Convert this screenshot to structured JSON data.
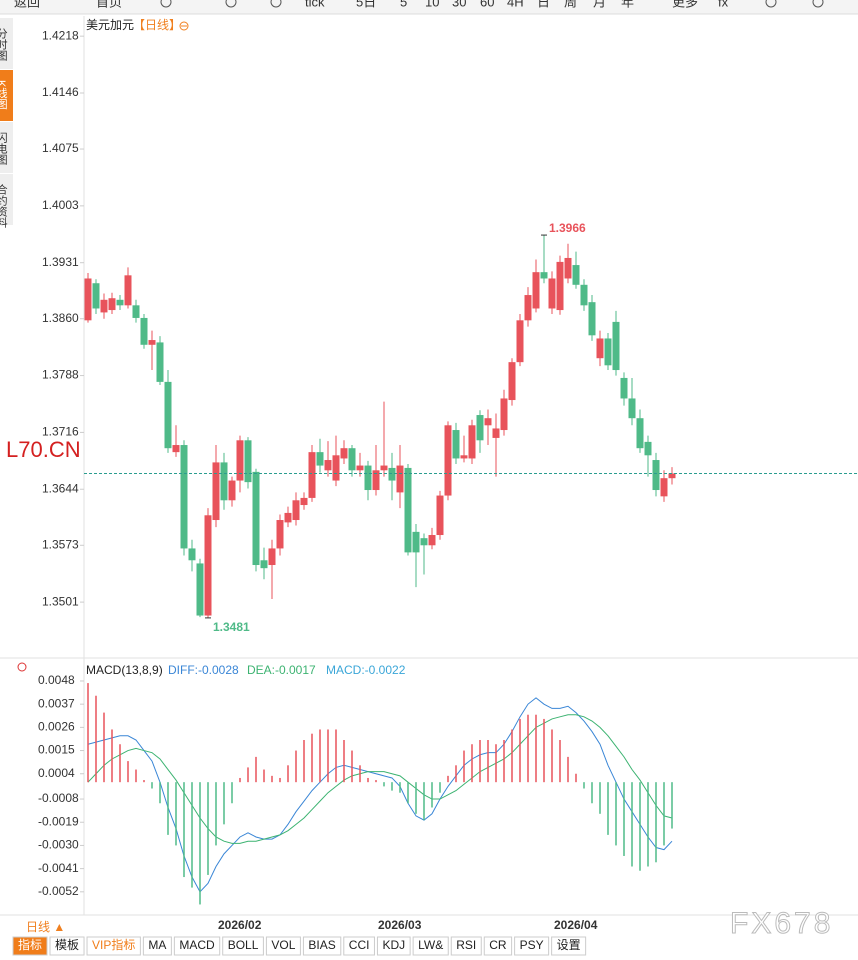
{
  "toolbar": [
    "返回",
    "首页",
    "tick",
    "5日",
    "5",
    "10",
    "30",
    "60",
    "4H",
    "日",
    "周",
    "月",
    "年",
    "更多",
    "fx"
  ],
  "sidebar": [
    "分时图",
    "K线图",
    "闪电图",
    "合约资料"
  ],
  "watermarks": [
    "L70.CN",
    "FX678"
  ],
  "bottom_bar": {
    "period": "日线 ▲",
    "tabs": [
      "指标",
      "模板",
      "VIP指标",
      "MA",
      "MACD",
      "BOLL",
      "VOL",
      "BIAS",
      "CCI",
      "KDJ",
      "LW&",
      "RSI",
      "CR",
      "PSY",
      "设置"
    ]
  },
  "chart_data": [
    {
      "type": "candlestick",
      "title": "美元加元",
      "subtitle": "【日线】",
      "up_color": "#e8535b",
      "down_color": "#4fba88",
      "categories": [
        null,
        null,
        null,
        null,
        null,
        null,
        null,
        null,
        null,
        null,
        null,
        null,
        null,
        null,
        null,
        null,
        "2026/02",
        null,
        null,
        null,
        null,
        null,
        null,
        null,
        null,
        null,
        null,
        null,
        null,
        null,
        null,
        null,
        null,
        null,
        null,
        null,
        "2026/03",
        null,
        null,
        null,
        null,
        null,
        null,
        null,
        null,
        null,
        null,
        null,
        null,
        null,
        null,
        null,
        null,
        null,
        null,
        null,
        null,
        null,
        "2026/04",
        null,
        null,
        null,
        null,
        null,
        null,
        null,
        null,
        null,
        null,
        null,
        null,
        null,
        null,
        null
      ],
      "open": [
        1.3858,
        1.3905,
        1.3868,
        1.3871,
        1.3884,
        1.3877,
        1.3877,
        1.3861,
        1.3827,
        1.383,
        1.378,
        1.3691,
        1.37,
        1.3569,
        1.355,
        1.3484,
        1.3605,
        1.3678,
        1.363,
        1.3655,
        1.3706,
        1.3666,
        1.3554,
        1.3548,
        1.3569,
        1.3602,
        1.3605,
        1.3624,
        1.3633,
        1.3691,
        1.3668,
        1.3655,
        1.3683,
        1.3696,
        1.3668,
        1.3674,
        1.3643,
        1.3668,
        1.3671,
        1.364,
        1.3671,
        1.359,
        1.3582,
        1.3573,
        1.3586,
        1.3636,
        1.3719,
        1.3683,
        1.3683,
        1.3738,
        1.3725,
        1.3709,
        1.3719,
        1.3757,
        1.3805,
        1.3858,
        1.3873,
        1.3919,
        1.3873,
        1.3871,
        1.3911,
        1.3928,
        1.3903,
        1.3881,
        1.381,
        1.3835,
        1.3856,
        1.3785,
        1.3759,
        1.3734,
        1.3704,
        1.3681,
        1.3635,
        1.3658
      ],
      "high": [
        1.3918,
        1.391,
        1.3892,
        1.3893,
        1.389,
        1.3925,
        1.3884,
        1.3866,
        1.3845,
        1.3838,
        1.3795,
        1.3725,
        1.3706,
        1.358,
        1.3556,
        1.362,
        1.37,
        1.369,
        1.366,
        1.3712,
        1.371,
        1.367,
        1.357,
        1.358,
        1.3612,
        1.3622,
        1.364,
        1.364,
        1.37,
        1.3708,
        1.3705,
        1.3712,
        1.3706,
        1.37,
        1.369,
        1.368,
        1.37,
        1.3755,
        1.369,
        1.37,
        1.3676,
        1.36,
        1.3588,
        1.3595,
        1.3642,
        1.373,
        1.3728,
        1.3712,
        1.3732,
        1.3744,
        1.3745,
        1.374,
        1.377,
        1.381,
        1.3866,
        1.39,
        1.3935,
        1.3966,
        1.392,
        1.394,
        1.3955,
        1.3945,
        1.391,
        1.389,
        1.3845,
        1.3842,
        1.387,
        1.3792,
        1.3785,
        1.3745,
        1.3712,
        1.369,
        1.3668,
        1.3672
      ],
      "low": [
        1.3855,
        1.3866,
        1.386,
        1.3866,
        1.3871,
        1.3873,
        1.3855,
        1.3822,
        1.3795,
        1.3776,
        1.369,
        1.3685,
        1.356,
        1.354,
        1.3482,
        1.3481,
        1.3596,
        1.3618,
        1.3622,
        1.364,
        1.3645,
        1.354,
        1.353,
        1.3505,
        1.356,
        1.3596,
        1.3598,
        1.3618,
        1.3628,
        1.3665,
        1.366,
        1.3648,
        1.3676,
        1.366,
        1.366,
        1.363,
        1.3636,
        1.366,
        1.363,
        1.362,
        1.356,
        1.352,
        1.3536,
        1.3568,
        1.358,
        1.363,
        1.3676,
        1.3678,
        1.3676,
        1.369,
        1.37,
        1.366,
        1.3712,
        1.375,
        1.38,
        1.385,
        1.3868,
        1.3905,
        1.3866,
        1.3865,
        1.3905,
        1.3898,
        1.387,
        1.3832,
        1.38,
        1.3795,
        1.3788,
        1.375,
        1.3725,
        1.369,
        1.366,
        1.3635,
        1.3628,
        1.365
      ],
      "close": [
        1.3911,
        1.3873,
        1.3884,
        1.3886,
        1.3877,
        1.3915,
        1.3861,
        1.3827,
        1.3833,
        1.378,
        1.3696,
        1.37,
        1.3569,
        1.3554,
        1.3484,
        1.3611,
        1.3678,
        1.363,
        1.3655,
        1.3706,
        1.3653,
        1.3548,
        1.3544,
        1.3569,
        1.3605,
        1.3614,
        1.363,
        1.3633,
        1.3691,
        1.3674,
        1.3681,
        1.3687,
        1.3696,
        1.3668,
        1.3674,
        1.3643,
        1.3668,
        1.3674,
        1.3655,
        1.3674,
        1.3564,
        1.3564,
        1.3573,
        1.3586,
        1.3636,
        1.3725,
        1.3683,
        1.3687,
        1.3725,
        1.3706,
        1.3734,
        1.3721,
        1.3759,
        1.3805,
        1.3858,
        1.389,
        1.3919,
        1.3911,
        1.3911,
        1.3932,
        1.3937,
        1.3903,
        1.3877,
        1.3839,
        1.3835,
        1.3801,
        1.3795,
        1.3759,
        1.3734,
        1.3696,
        1.3687,
        1.3643,
        1.3658,
        1.3664
      ],
      "ylim": [
        1.3434,
        1.4241
      ],
      "yticks": [
        1.4218,
        1.4146,
        1.4075,
        1.4003,
        1.3931,
        {
          "value": 1.386,
          "label": "1.3860"
        },
        1.3788,
        1.3716,
        1.3644,
        1.3573,
        1.3501
      ],
      "last_color": "#2a9d8f"
    },
    {
      "type": "macd",
      "title": "MACD(13,8,9)",
      "series": [
        {
          "name": "DIFF:-0.0028",
          "color": "#3a86d6",
          "values": [
            0.0018,
            0.0019,
            0.002,
            0.0021,
            0.0022,
            0.0022,
            0.002,
            0.0015,
            0.001,
            0.0,
            -0.0012,
            -0.0022,
            -0.0035,
            -0.0045,
            -0.0052,
            -0.0048,
            -0.004,
            -0.0034,
            -0.003,
            -0.0026,
            -0.0024,
            -0.0026,
            -0.0027,
            -0.0027,
            -0.0025,
            -0.002,
            -0.0014,
            -0.0009,
            -0.0004,
            0.0,
            0.0004,
            0.0007,
            0.0008,
            0.0007,
            0.0006,
            0.0005,
            0.0004,
            0.0003,
            0.0002,
            -0.0002,
            -0.001,
            -0.0016,
            -0.0018,
            -0.0015,
            -0.0008,
            -0.0002,
            0.0003,
            0.0008,
            0.0011,
            0.0013,
            0.0014,
            0.0014,
            0.0018,
            0.0024,
            0.0031,
            0.0037,
            0.004,
            0.0037,
            0.0035,
            0.0035,
            0.0036,
            0.0033,
            0.0029,
            0.0024,
            0.0018,
            0.0008,
            0.0,
            -0.0008,
            -0.0014,
            -0.002,
            -0.0026,
            -0.0031,
            -0.0032,
            -0.0028
          ]
        },
        {
          "name": "DEA:-0.0017",
          "color": "#3cb371",
          "values": [
            0.0,
            0.0004,
            0.0008,
            0.0011,
            0.0013,
            0.0015,
            0.0016,
            0.0015,
            0.0014,
            0.0011,
            0.0006,
            0.0001,
            -0.0005,
            -0.0011,
            -0.0017,
            -0.0022,
            -0.0026,
            -0.0028,
            -0.0029,
            -0.0029,
            -0.0028,
            -0.0028,
            -0.0027,
            -0.0026,
            -0.0025,
            -0.0023,
            -0.002,
            -0.0017,
            -0.0013,
            -0.0009,
            -0.0005,
            -0.0002,
            0.0001,
            0.0003,
            0.0004,
            0.0005,
            0.0005,
            0.0005,
            0.0004,
            0.0003,
            0.0,
            -0.0003,
            -0.0006,
            -0.0008,
            -0.0008,
            -0.0006,
            -0.0004,
            -0.0001,
            0.0002,
            0.0005,
            0.0007,
            0.0009,
            0.0011,
            0.0014,
            0.0018,
            0.0022,
            0.0026,
            0.0028,
            0.003,
            0.0031,
            0.0032,
            0.0032,
            0.0031,
            0.0029,
            0.0026,
            0.0022,
            0.0017,
            0.0012,
            0.0006,
            0.0001,
            -0.0005,
            -0.0011,
            -0.0016,
            -0.0017
          ]
        },
        {
          "name": "MACD:-0.0022",
          "color": "#3aa6d8",
          "up_color": "#e8535b",
          "down_color": "#4fba88",
          "values": [
            0.0047,
            0.0041,
            0.0033,
            0.0025,
            0.0018,
            0.001,
            0.0006,
            0.0001,
            -0.0003,
            -0.001,
            -0.0025,
            -0.003,
            -0.0045,
            -0.005,
            -0.0058,
            -0.0044,
            -0.003,
            -0.002,
            -0.001,
            0.0002,
            0.0007,
            0.0012,
            0.0006,
            0.0003,
            0.0002,
            0.0008,
            0.0015,
            0.002,
            0.0023,
            0.0025,
            0.0025,
            0.0025,
            0.002,
            0.0015,
            0.0008,
            0.0002,
            0.0001,
            -0.0002,
            -0.0004,
            -0.0005,
            -0.001,
            -0.0015,
            -0.0018,
            -0.0012,
            -0.0005,
            0.0003,
            0.0008,
            0.0015,
            0.0018,
            0.002,
            0.002,
            0.0018,
            0.002,
            0.0025,
            0.003,
            0.0032,
            0.0032,
            0.003,
            0.0025,
            0.002,
            0.0012,
            0.0004,
            -0.0003,
            -0.001,
            -0.0015,
            -0.0025,
            -0.003,
            -0.0035,
            -0.004,
            -0.0042,
            -0.004,
            -0.0038,
            -0.003,
            -0.0022
          ]
        }
      ],
      "ylim": [
        -0.0063,
        0.0057
      ],
      "yticks": [
        0.0048,
        0.0037,
        0.0026,
        0.0015,
        0.0004,
        -0.0008,
        -0.0019,
        {
          "value": -0.003,
          "label": "-0.0030"
        },
        -0.0041,
        -0.0052
      ]
    }
  ]
}
